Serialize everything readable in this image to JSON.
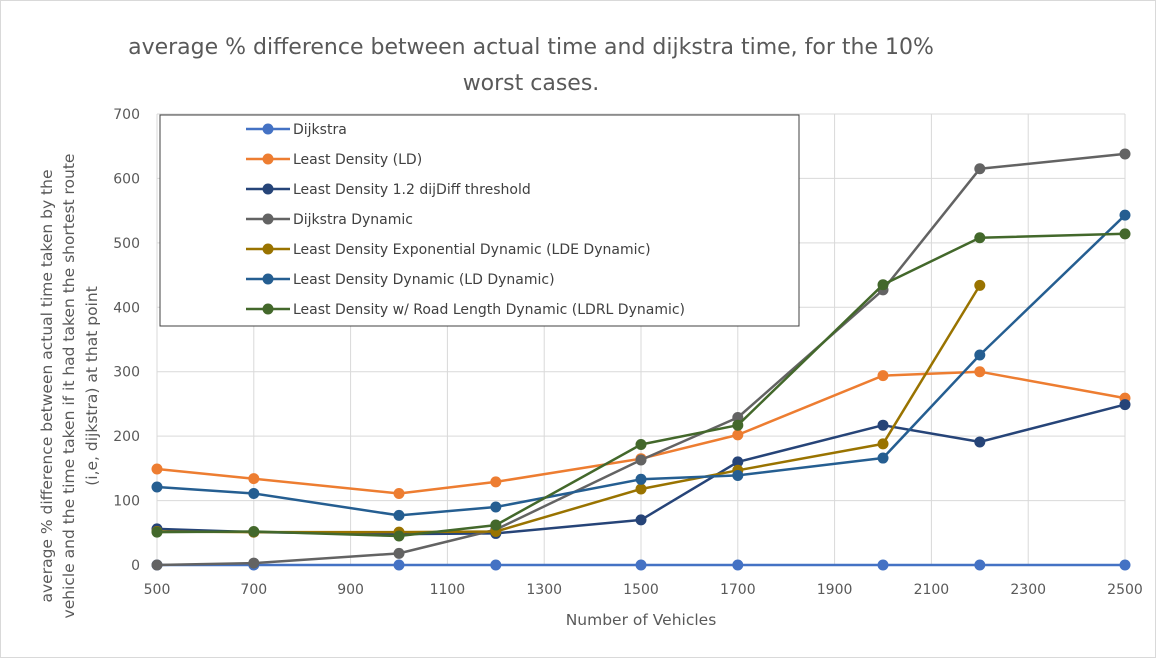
{
  "chart_data": {
    "type": "line",
    "title": "average % difference between actual time and dijkstra time, for the 10% worst cases.",
    "title_lines": [
      "average % difference between actual time and dijkstra time, for the 10%",
      "worst cases."
    ],
    "xlabel": "Number of Vehicles",
    "ylabel": "average % difference between actual time taken by the vehicle and the time taken if it had taken the shortest route (i,e, dijkstra) at that point",
    "ylabel_lines": [
      "average % difference between actual time taken by the",
      "vehicle and the time taken if it had taken the shortest route",
      "(i,e, dijkstra) at that point"
    ],
    "xlim": [
      500,
      2500
    ],
    "ylim": [
      0,
      700
    ],
    "xticks": [
      500,
      700,
      900,
      1100,
      1300,
      1500,
      1700,
      1900,
      2100,
      2300,
      2500
    ],
    "yticks": [
      0,
      100,
      200,
      300,
      400,
      500,
      600,
      700
    ],
    "grid": true,
    "legend_position": "top-left",
    "series": [
      {
        "name": "Dijkstra",
        "color": "#4472c4",
        "points": [
          [
            500,
            0
          ],
          [
            700,
            0
          ],
          [
            1000,
            0
          ],
          [
            1200,
            0
          ],
          [
            1500,
            0
          ],
          [
            1700,
            0
          ],
          [
            2000,
            0
          ],
          [
            2200,
            0
          ],
          [
            2500,
            0
          ]
        ]
      },
      {
        "name": "Least Density (LD)",
        "color": "#ed7d31",
        "points": [
          [
            500,
            149
          ],
          [
            700,
            134
          ],
          [
            1000,
            111
          ],
          [
            1200,
            129
          ],
          [
            1500,
            165
          ],
          [
            1700,
            202
          ],
          [
            2000,
            294
          ],
          [
            2200,
            300
          ],
          [
            2500,
            259
          ]
        ]
      },
      {
        "name": "Least Density 1.2 dijDiff threshold",
        "color": "#264478",
        "points": [
          [
            500,
            56
          ],
          [
            700,
            51
          ],
          [
            1000,
            48
          ],
          [
            1200,
            49
          ],
          [
            1500,
            70
          ],
          [
            1700,
            160
          ],
          [
            2000,
            217
          ],
          [
            2200,
            191
          ],
          [
            2500,
            249
          ]
        ]
      },
      {
        "name": "Dijkstra Dynamic",
        "color": "#636363",
        "points": [
          [
            500,
            0
          ],
          [
            700,
            3
          ],
          [
            1000,
            18
          ],
          [
            1200,
            55
          ],
          [
            1500,
            163
          ],
          [
            1700,
            229
          ],
          [
            2000,
            427
          ],
          [
            2200,
            615
          ],
          [
            2500,
            638
          ]
        ]
      },
      {
        "name": "Least Density Exponential Dynamic (LDE Dynamic)",
        "color": "#997300",
        "points": [
          [
            500,
            52
          ],
          [
            700,
            51
          ],
          [
            1000,
            51
          ],
          [
            1200,
            52
          ],
          [
            1500,
            118
          ],
          [
            1700,
            147
          ],
          [
            2000,
            188
          ],
          [
            2200,
            434
          ]
        ]
      },
      {
        "name": "Least Density Dynamic (LD Dynamic)",
        "color": "#255e91",
        "points": [
          [
            500,
            121
          ],
          [
            700,
            111
          ],
          [
            1000,
            77
          ],
          [
            1200,
            90
          ],
          [
            1500,
            133
          ],
          [
            1700,
            139
          ],
          [
            2000,
            166
          ],
          [
            2200,
            326
          ],
          [
            2500,
            543
          ]
        ]
      },
      {
        "name": "Least Density w/ Road Length Dynamic (LDRL Dynamic)",
        "color": "#43682b",
        "points": [
          [
            500,
            51
          ],
          [
            700,
            52
          ],
          [
            1000,
            45
          ],
          [
            1200,
            62
          ],
          [
            1500,
            187
          ],
          [
            1700,
            217
          ],
          [
            2000,
            435
          ],
          [
            2200,
            508
          ],
          [
            2500,
            514
          ]
        ]
      }
    ]
  }
}
